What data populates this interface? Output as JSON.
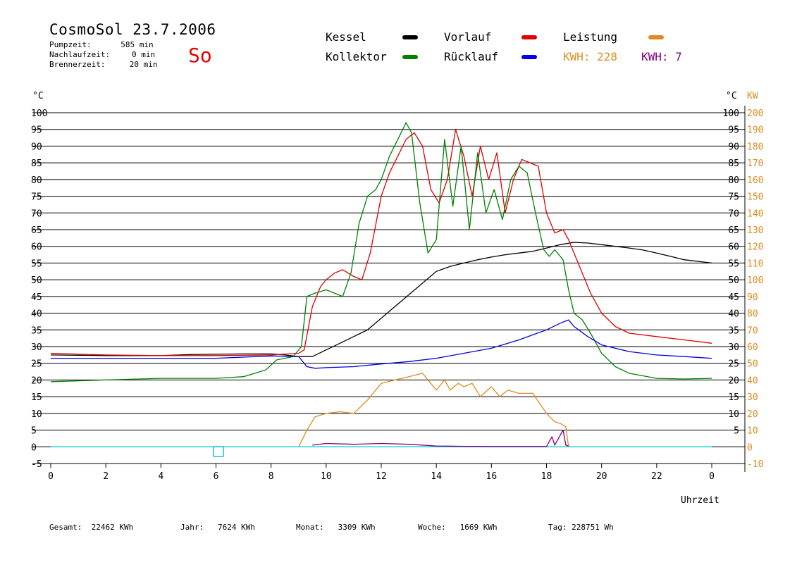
{
  "header": {
    "title": "CosmoSol 23.7.2006",
    "day": "So",
    "stats": [
      {
        "label": "Pumpzeit:",
        "value": "585 min"
      },
      {
        "label": "Nachlaufzeit:",
        "value": "0 min"
      },
      {
        "label": "Brennerzeit:",
        "value": "20 min"
      }
    ]
  },
  "legend": {
    "items": [
      {
        "label": "Kessel",
        "color": "#000000"
      },
      {
        "label": "Vorlauf",
        "color": "#e00000"
      },
      {
        "label": "Leistung",
        "color": "#e08a1e"
      },
      {
        "label": "Kollektor",
        "color": "#008000"
      },
      {
        "label": "Rücklauf",
        "color": "#0000e0"
      }
    ],
    "kwh1": "KWH: 228",
    "kwh1_color": "#e08a1e",
    "kwh2": "KWH: 7",
    "kwh2_color": "#800080"
  },
  "footer": {
    "gesamt": "Gesamt:  22462 KWh",
    "jahr": "Jahr:   7624 KWh",
    "monat": "Monat:   3309 KWh",
    "woche": "Woche:   1669 KWh",
    "tag": "Tag: 228751 Wh"
  },
  "chart_data": {
    "type": "line",
    "x_label": "Uhrzeit",
    "x_ticks": [
      "0",
      "2",
      "4",
      "6",
      "8",
      "10",
      "12",
      "14",
      "16",
      "18",
      "20",
      "22",
      "0"
    ],
    "xlim": [
      0,
      24
    ],
    "y_left_label": "°C",
    "y_left_ticks": [
      "-5",
      "0",
      "5",
      "10",
      "15",
      "20",
      "25",
      "30",
      "35",
      "40",
      "45",
      "50",
      "55",
      "60",
      "65",
      "70",
      "75",
      "80",
      "85",
      "90",
      "95",
      "100"
    ],
    "ylim": [
      -5,
      100
    ],
    "y_right_label_c": "°C",
    "y_right_label_kw": "KW",
    "y_right_ticks_c": [
      "5",
      "10",
      "15",
      "20",
      "25",
      "30",
      "35",
      "40",
      "45",
      "50",
      "55",
      "60",
      "65",
      "70",
      "75",
      "80",
      "85",
      "90",
      "95",
      "100"
    ],
    "y_right_ticks_kw": [
      "-10",
      "0",
      "10",
      "20",
      "30",
      "40",
      "50",
      "60",
      "70",
      "80",
      "90",
      "100",
      "110",
      "120",
      "130",
      "140",
      "150",
      "160",
      "170",
      "180",
      "190",
      "200"
    ],
    "grid": true,
    "series": [
      {
        "name": "Kessel",
        "color": "#000000",
        "x": [
          0,
          1,
          2,
          3,
          4,
          5,
          6,
          7,
          8,
          8.5,
          9,
          9.5,
          10,
          10.5,
          11,
          11.5,
          12,
          12.5,
          13,
          13.5,
          14,
          14.5,
          15,
          15.5,
          16,
          16.5,
          17,
          17.5,
          18,
          18.5,
          19,
          19.5,
          20,
          20.5,
          21,
          21.5,
          22,
          22.5,
          23,
          24
        ],
        "y": [
          27.5,
          27.4,
          27.3,
          27.3,
          27.3,
          27.6,
          27.7,
          27.8,
          27.8,
          27.5,
          27,
          27,
          29,
          31,
          33,
          35,
          38.5,
          42,
          45.5,
          49,
          52.5,
          54,
          55,
          56,
          56.8,
          57.5,
          58,
          58.5,
          59.5,
          60.5,
          61.2,
          61,
          60.5,
          60,
          59.5,
          58.9,
          58,
          57,
          56,
          55
        ]
      },
      {
        "name": "Vorlauf",
        "color": "#e00000",
        "x": [
          0,
          2,
          4,
          6,
          8,
          9,
          9.2,
          9.5,
          9.8,
          10,
          10.3,
          10.6,
          11,
          11.3,
          11.6,
          12,
          12.3,
          12.6,
          12.9,
          13.2,
          13.5,
          13.8,
          14.1,
          14.4,
          14.7,
          15,
          15.3,
          15.6,
          15.9,
          16.2,
          16.5,
          16.8,
          17.1,
          17.4,
          17.7,
          18,
          18.3,
          18.6,
          18.8,
          19,
          19.3,
          19.6,
          20,
          20.5,
          21,
          22,
          23,
          24
        ],
        "y": [
          28,
          27.5,
          27.3,
          27.3,
          27.5,
          28,
          29,
          42,
          48,
          50,
          52,
          53,
          51,
          50,
          58,
          75,
          82,
          87,
          92,
          94,
          90,
          77,
          73,
          80,
          95,
          87,
          75,
          90,
          80,
          88,
          70,
          80,
          86,
          85,
          84,
          70,
          64,
          65,
          62,
          58,
          52,
          46,
          40,
          36,
          34,
          33,
          32,
          31
        ]
      },
      {
        "name": "Kollektor",
        "color": "#008000",
        "x": [
          0,
          2,
          4,
          6,
          7,
          7.8,
          8.2,
          8.8,
          9.1,
          9.3,
          9.6,
          10,
          10.3,
          10.6,
          10.9,
          11.2,
          11.5,
          11.8,
          12,
          12.3,
          12.6,
          12.9,
          13.1,
          13.4,
          13.7,
          14,
          14.3,
          14.6,
          14.9,
          15.2,
          15.5,
          15.8,
          16.1,
          16.4,
          16.7,
          17,
          17.3,
          17.6,
          17.9,
          18.1,
          18.3,
          18.6,
          18.8,
          19,
          19.3,
          19.6,
          20,
          20.5,
          21,
          22,
          23,
          24
        ],
        "y": [
          19.5,
          20,
          20.5,
          20.5,
          21,
          23,
          26,
          27,
          30,
          45,
          46,
          47,
          46,
          45,
          52,
          67,
          75,
          77,
          80,
          87,
          92,
          97,
          94,
          73,
          58,
          62,
          92,
          72,
          90,
          65,
          88,
          70,
          77,
          68,
          80,
          84,
          82,
          70,
          59,
          57,
          59,
          56,
          47,
          40,
          38,
          34,
          28,
          24,
          22,
          20.5,
          20.3,
          20.5
        ]
      },
      {
        "name": "Rücklauf",
        "color": "#0000e0",
        "x": [
          0,
          2,
          4,
          6,
          8,
          9,
          9.3,
          9.6,
          10,
          11,
          12,
          13,
          14,
          15,
          16,
          17,
          18,
          18.5,
          18.8,
          19,
          19.5,
          20,
          21,
          22,
          23,
          24
        ],
        "y": [
          26.5,
          26.5,
          26.5,
          26.5,
          27.2,
          27,
          24,
          23.5,
          23.7,
          24,
          24.8,
          25.5,
          26.5,
          28,
          29.5,
          32,
          35,
          37,
          38,
          36,
          33,
          30.5,
          28.5,
          27.5,
          27,
          26.5
        ]
      },
      {
        "name": "Leistung",
        "color": "#e08a1e",
        "unit": "KW",
        "x": [
          9,
          9.3,
          9.6,
          10,
          10.5,
          11,
          11.5,
          12,
          12.5,
          13,
          13.5,
          14,
          14.3,
          14.5,
          14.8,
          15,
          15.3,
          15.6,
          16,
          16.3,
          16.6,
          17,
          17.5,
          18,
          18.3,
          18.5,
          18.7,
          18.8
        ],
        "y": [
          0,
          10,
          18,
          20,
          21,
          20,
          28,
          38,
          40,
          42,
          44,
          34,
          40,
          34,
          38,
          36,
          38,
          30,
          36,
          30,
          34,
          32,
          32,
          20,
          15,
          14,
          12,
          0
        ]
      },
      {
        "name": "KWH 7",
        "color": "#800080",
        "unit": "KW",
        "x": [
          9.5,
          10,
          11,
          12,
          13,
          14,
          15,
          16,
          17,
          18,
          18.2,
          18.3,
          18.6,
          18.7,
          18.8
        ],
        "y": [
          1,
          2,
          1.5,
          2,
          1.5,
          0.5,
          0.3,
          0.2,
          0.2,
          0.2,
          6,
          1,
          10,
          1,
          0.5
        ]
      }
    ]
  }
}
